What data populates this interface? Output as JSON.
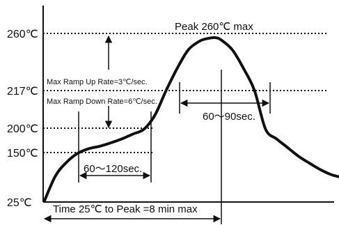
{
  "chart_data": {
    "type": "line",
    "title": "",
    "xlabel": "",
    "ylabel": "",
    "y_ticks": [
      "260℃",
      "217℃",
      "200℃",
      "150℃",
      "25℃"
    ],
    "reference_lines": [
      {
        "value": 260,
        "label": "260℃"
      },
      {
        "value": 217,
        "label": "217℃"
      },
      {
        "value": 200,
        "label": "200℃"
      },
      {
        "value": 150,
        "label": "150℃"
      }
    ],
    "series": [
      {
        "x": [
          0,
          0.5,
          1.0,
          1.5,
          2.0,
          2.5,
          3.0,
          3.5,
          4.0,
          4.5,
          5.0,
          5.5,
          6.0,
          6.5,
          7.0,
          7.3,
          7.7,
          8.0,
          8.5,
          9.0,
          9.5,
          10.0,
          10.5,
          11.0,
          11.5,
          12.0,
          12.5,
          13.0,
          13.5
        ],
        "values": [
          25,
          90,
          125,
          148,
          158,
          163,
          170,
          178,
          188,
          198,
          206,
          217,
          235,
          250,
          257,
          259,
          260,
          258,
          250,
          235,
          217,
          198,
          178,
          160,
          140,
          122,
          105,
          92,
          85
        ]
      }
    ],
    "annotations": {
      "peak": "Peak 260℃ max",
      "ramp_up": "Max Ramp Up Rate=3℃/sec.",
      "ramp_down": "Max Ramp Down Rate=6℃/sec.",
      "above_217": "60～90sec.",
      "soak": "60～120sec.",
      "time_to_peak": "Time 25℃ to Peak =8 min max"
    }
  }
}
